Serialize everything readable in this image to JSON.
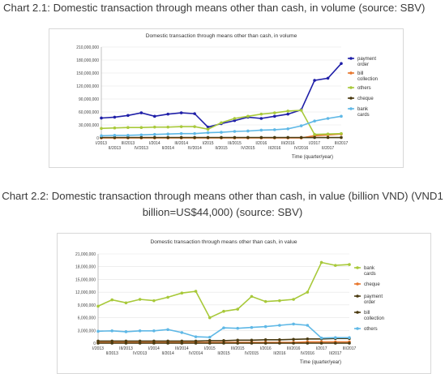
{
  "captions": {
    "chart1": "Chart 2.1: Domestic transaction through means other than cash, in volume (source: SBV)",
    "chart2_line1": "Chart 2.2: Domestic transaction through means other than cash, in value (billion VND)  (VND1",
    "chart2_line2": "billion=US$44,000) (source: SBV)"
  },
  "chart_data": [
    {
      "type": "line",
      "title": "Domestic transaction through means other than cash, in volume",
      "xlabel": "Time (quarter/year)",
      "ylabel": "",
      "ylim": [
        0,
        210000000
      ],
      "yticks": [
        "0",
        "30,000,000",
        "60,000,000",
        "90,000,000",
        "120,000,000",
        "150,000,000",
        "180,000,000",
        "210,000,000"
      ],
      "categories": [
        "I/2013",
        "II/2013",
        "III/2013",
        "IV/2013",
        "I/2014",
        "II/2014",
        "III/2014",
        "IV/2014",
        "I/2015",
        "II/2015",
        "III/2015",
        "IV/2015",
        "I/2016",
        "II/2016",
        "III/2016",
        "IV/2016",
        "I/2017",
        "II/2017",
        "III/2017"
      ],
      "legend": "right",
      "grid": true,
      "series": [
        {
          "name": "payment order",
          "color": "#1f1fa8",
          "values": [
            46000000,
            48000000,
            52000000,
            58000000,
            50000000,
            55000000,
            58000000,
            56000000,
            25000000,
            33000000,
            40000000,
            48000000,
            45000000,
            50000000,
            55000000,
            65000000,
            133000000,
            138000000,
            172000000
          ]
        },
        {
          "name": "bill collection",
          "color": "#e8762c",
          "values": [
            0,
            0,
            0,
            0,
            0,
            0,
            0,
            0,
            0,
            0,
            0,
            0,
            0,
            0,
            0,
            0,
            5000000,
            7000000,
            9000000
          ]
        },
        {
          "name": "others",
          "color": "#a8c93a",
          "values": [
            22000000,
            23000000,
            24000000,
            24000000,
            25000000,
            25000000,
            26000000,
            26000000,
            20000000,
            35000000,
            45000000,
            50000000,
            55000000,
            58000000,
            62000000,
            64000000,
            8000000,
            9000000,
            10000000
          ]
        },
        {
          "name": "cheque",
          "color": "#4a3a10",
          "values": [
            1000000,
            1000000,
            1000000,
            1000000,
            1000000,
            1000000,
            1000000,
            1000000,
            1000000,
            1000000,
            1000000,
            1000000,
            1000000,
            1000000,
            1000000,
            1000000,
            1000000,
            1000000,
            1000000
          ]
        },
        {
          "name": "bank cards",
          "color": "#5fb8e6",
          "values": [
            5000000,
            6000000,
            6000000,
            7000000,
            8000000,
            9000000,
            10000000,
            10000000,
            12000000,
            13000000,
            15000000,
            16000000,
            18000000,
            19000000,
            21000000,
            28000000,
            39000000,
            45000000,
            50000000
          ]
        }
      ]
    },
    {
      "type": "line",
      "title": "Domestic transaction through means other than cash, in value",
      "xlabel": "Time (quarter/year)",
      "ylabel": "",
      "ylim": [
        0,
        21000000
      ],
      "yticks": [
        "0",
        "3,000,000",
        "6,000,000",
        "9,000,000",
        "12,000,000",
        "15,000,000",
        "18,000,000",
        "21,000,000"
      ],
      "categories": [
        "I/2013",
        "II/2013",
        "III/2013",
        "IV/2013",
        "I/2014",
        "II/2014",
        "III/2014",
        "IV/2014",
        "I/2015",
        "II/2015",
        "III/2015",
        "IV/2015",
        "I/2016",
        "II/2016",
        "III/2016",
        "IV/2016",
        "I/2017",
        "II/2017",
        "III/2017"
      ],
      "legend": "right",
      "grid": true,
      "series": [
        {
          "name": "bank cards",
          "color": "#a8c93a",
          "values": [
            8700000,
            10200000,
            9500000,
            10300000,
            10000000,
            10800000,
            11800000,
            12200000,
            6000000,
            7500000,
            8000000,
            11000000,
            9800000,
            10000000,
            10300000,
            12000000,
            19000000,
            18300000,
            18500000
          ]
        },
        {
          "name": "cheque",
          "color": "#e8762c",
          "values": [
            200000,
            200000,
            200000,
            200000,
            200000,
            200000,
            200000,
            200000,
            200000,
            200000,
            200000,
            200000,
            200000,
            200000,
            200000,
            300000,
            300000,
            300000,
            300000
          ]
        },
        {
          "name": "payment order",
          "color": "#4a3a10",
          "values": [
            500000,
            500000,
            500000,
            500000,
            500000,
            500000,
            500000,
            500000,
            600000,
            600000,
            700000,
            700000,
            800000,
            800000,
            900000,
            1000000,
            1000000,
            1100000,
            1100000
          ]
        },
        {
          "name": "bill collection",
          "color": "#4a3a10",
          "values": [
            0,
            0,
            0,
            0,
            0,
            0,
            0,
            0,
            0,
            0,
            0,
            0,
            0,
            0,
            0,
            0,
            0,
            0,
            0
          ]
        },
        {
          "name": "others",
          "color": "#5fb8e6",
          "values": [
            2800000,
            2900000,
            2700000,
            2900000,
            2900000,
            3200000,
            2500000,
            1500000,
            1400000,
            3600000,
            3500000,
            3700000,
            3900000,
            4200000,
            4500000,
            4200000,
            1200000,
            1300000,
            1300000
          ]
        }
      ]
    }
  ]
}
